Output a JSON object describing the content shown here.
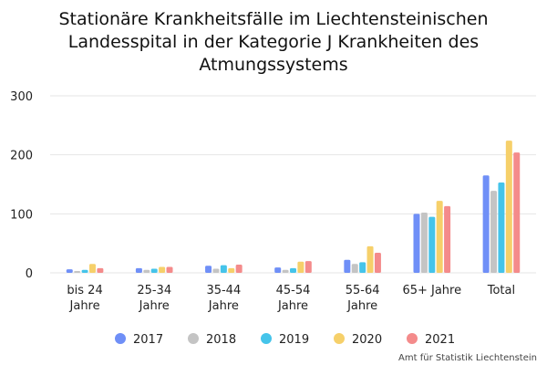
{
  "colors": {
    "2017": "#6f8ff7",
    "2018": "#c4c4c4",
    "2019": "#45c4ea",
    "2020": "#f6d06a",
    "2021": "#f48b8b"
  },
  "source": "Amt für Statistik Liechtenstein",
  "chart_data": {
    "type": "bar",
    "title_lines": [
      "Stationäre Krankheitsfälle im Liechtensteinischen",
      "Landesspital in der Kategorie J Krankheiten des",
      "Atmungssystems"
    ],
    "categories": [
      [
        "bis 24",
        "Jahre"
      ],
      [
        "25-34",
        "Jahre"
      ],
      [
        "35-44",
        "Jahre"
      ],
      [
        "45-54",
        "Jahre"
      ],
      [
        "55-64",
        "Jahre"
      ],
      [
        "65+ Jahre"
      ],
      [
        "Total"
      ]
    ],
    "series": [
      {
        "name": "2017",
        "values": [
          6,
          8,
          12,
          9,
          22,
          100,
          165
        ]
      },
      {
        "name": "2018",
        "values": [
          3,
          5,
          7,
          5,
          15,
          102,
          139
        ]
      },
      {
        "name": "2019",
        "values": [
          5,
          7,
          13,
          8,
          18,
          95,
          153
        ]
      },
      {
        "name": "2020",
        "values": [
          15,
          10,
          8,
          19,
          45,
          122,
          224
        ]
      },
      {
        "name": "2021",
        "values": [
          8,
          10,
          14,
          20,
          34,
          113,
          204
        ]
      }
    ],
    "yticks": [
      0,
      100,
      200,
      300
    ],
    "ylim": [
      0,
      300
    ],
    "grid": true,
    "legend": "bottom"
  }
}
